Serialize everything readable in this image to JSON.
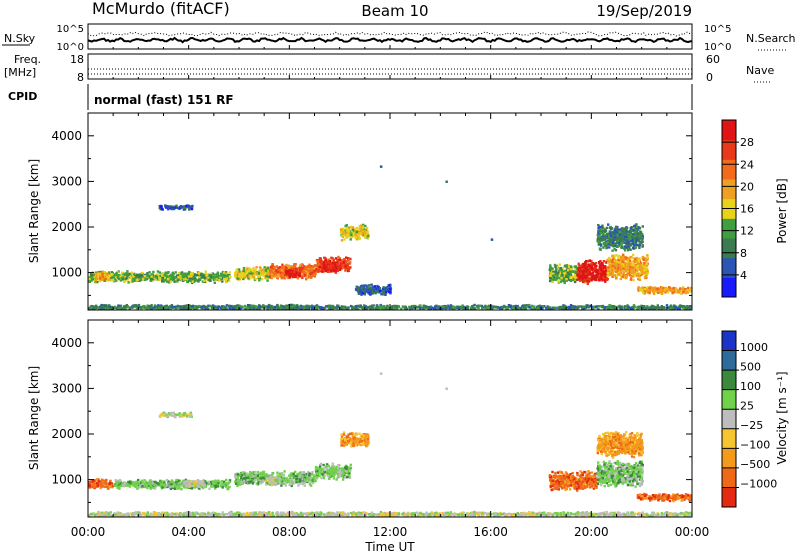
{
  "header": {
    "station": "McMurdo (fitACF)",
    "beam": "Beam 10",
    "date": "19/Sep/2019"
  },
  "noise_panel": {
    "left_label": "N.Sky",
    "right_label": "N.Search",
    "left_ticks": [
      "10^5",
      "10^0"
    ],
    "right_ticks": [
      "10^5",
      "10^0"
    ]
  },
  "freq_panel": {
    "left_label_1": "Freq.",
    "left_label_2": "[MHz]",
    "left_ticks": [
      "18",
      "8"
    ],
    "right_label": "Nave",
    "right_ticks": [
      "60",
      "0"
    ]
  },
  "cpid": {
    "label": "CPID",
    "mode": "normal (fast) 151 RF"
  },
  "colors": {
    "power_scale": [
      "#1a1aff",
      "#2a55b4",
      "#3c7a50",
      "#3f9e3f",
      "#e8d21a",
      "#f0a020",
      "#f26a1c",
      "#e83a1a",
      "#e01414"
    ],
    "velocity_scale": [
      "#1a34c8",
      "#2f6b9a",
      "#3b8a3b",
      "#6fd24a",
      "#bdbdbd",
      "#f7c531",
      "#f39a1c",
      "#ef6a17",
      "#e52a12"
    ]
  },
  "chart_data": [
    {
      "type": "heatmap",
      "name": "power",
      "xlabel": "",
      "ylabel": "Slant Range [km]",
      "x_ticks": [
        "00:00",
        "04:00",
        "08:00",
        "12:00",
        "16:00",
        "20:00",
        "00:00"
      ],
      "x_range_hours": [
        0,
        24
      ],
      "y_ticks": [
        1000,
        2000,
        3000,
        4000
      ],
      "ylim": [
        180,
        4500
      ],
      "colorbar": {
        "label": "Power [dB]",
        "ticks": [
          4,
          8,
          12,
          16,
          20,
          24,
          28
        ],
        "range": [
          0,
          32
        ]
      },
      "scatter_regions": [
        {
          "t_start": 0.0,
          "t_end": 5.6,
          "r_center": 930,
          "r_spread": 130,
          "level": 3
        },
        {
          "t_start": 0.2,
          "t_end": 0.8,
          "r_center": 950,
          "r_spread": 100,
          "level": 5
        },
        {
          "t_start": 5.8,
          "t_end": 7.2,
          "r_center": 1000,
          "r_spread": 160,
          "level": 4
        },
        {
          "t_start": 7.2,
          "t_end": 9.0,
          "r_center": 1050,
          "r_spread": 180,
          "level": 6
        },
        {
          "t_start": 7.8,
          "t_end": 8.4,
          "r_center": 1020,
          "r_spread": 120,
          "level": 8
        },
        {
          "t_start": 9.0,
          "t_end": 10.4,
          "r_center": 1200,
          "r_spread": 180,
          "level": 7
        },
        {
          "t_start": 9.3,
          "t_end": 9.9,
          "r_center": 1150,
          "r_spread": 120,
          "level": 8
        },
        {
          "t_start": 10.0,
          "t_end": 11.1,
          "r_center": 1900,
          "r_spread": 180,
          "level": 4
        },
        {
          "t_start": 2.8,
          "t_end": 4.1,
          "r_center": 2450,
          "r_spread": 60,
          "level": 1
        },
        {
          "t_start": 10.6,
          "t_end": 12.0,
          "r_center": 650,
          "r_spread": 120,
          "level": 1
        },
        {
          "t_start": 18.3,
          "t_end": 19.8,
          "r_center": 1000,
          "r_spread": 220,
          "level": 3
        },
        {
          "t_start": 19.4,
          "t_end": 20.6,
          "r_center": 1050,
          "r_spread": 280,
          "level": 8
        },
        {
          "t_start": 20.6,
          "t_end": 22.2,
          "r_center": 1150,
          "r_spread": 300,
          "level": 5
        },
        {
          "t_start": 20.2,
          "t_end": 22.0,
          "r_center": 1800,
          "r_spread": 300,
          "level": 2
        },
        {
          "t_start": 21.8,
          "t_end": 24.0,
          "r_center": 640,
          "r_spread": 90,
          "level": 5
        },
        {
          "t_start": 0.0,
          "t_end": 24.0,
          "r_center": 260,
          "r_spread": 60,
          "level": 2
        }
      ],
      "isolated_points": [
        {
          "t": 11.6,
          "r": 3350,
          "level": 1
        },
        {
          "t": 14.2,
          "r": 3020,
          "level": 2
        },
        {
          "t": 16.0,
          "r": 1750,
          "level": 1
        }
      ]
    },
    {
      "type": "heatmap",
      "name": "velocity",
      "xlabel": "Time UT",
      "ylabel": "Slant Range [km]",
      "x_ticks": [
        "00:00",
        "04:00",
        "08:00",
        "12:00",
        "16:00",
        "20:00",
        "00:00"
      ],
      "x_range_hours": [
        0,
        24
      ],
      "y_ticks": [
        1000,
        2000,
        3000,
        4000
      ],
      "ylim": [
        180,
        4500
      ],
      "colorbar": {
        "label": "Velocity [m s⁻¹]",
        "ticks": [
          "1000",
          "500",
          "100",
          "25",
          "−25",
          "−100",
          "−500",
          "−1000"
        ]
      },
      "scatter_regions": [
        {
          "t_start": 0.0,
          "t_end": 1.0,
          "r_center": 930,
          "r_spread": 120,
          "level": 7
        },
        {
          "t_start": 1.0,
          "t_end": 5.6,
          "r_center": 920,
          "r_spread": 110,
          "level": 3
        },
        {
          "t_start": 3.8,
          "t_end": 4.6,
          "r_center": 930,
          "r_spread": 90,
          "level": 4
        },
        {
          "t_start": 5.8,
          "t_end": 9.0,
          "r_center": 1050,
          "r_spread": 170,
          "level": 3
        },
        {
          "t_start": 7.0,
          "t_end": 7.6,
          "r_center": 1020,
          "r_spread": 120,
          "level": 4
        },
        {
          "t_start": 9.0,
          "t_end": 10.4,
          "r_center": 1200,
          "r_spread": 180,
          "level": 3
        },
        {
          "t_start": 10.0,
          "t_end": 11.1,
          "r_center": 1900,
          "r_spread": 180,
          "level": 6
        },
        {
          "t_start": 2.8,
          "t_end": 4.1,
          "r_center": 2450,
          "r_spread": 60,
          "level": 4
        },
        {
          "t_start": 18.3,
          "t_end": 20.2,
          "r_center": 1000,
          "r_spread": 220,
          "level": 7
        },
        {
          "t_start": 20.2,
          "t_end": 22.0,
          "r_center": 1150,
          "r_spread": 300,
          "level": 3
        },
        {
          "t_start": 20.2,
          "t_end": 22.0,
          "r_center": 1800,
          "r_spread": 300,
          "level": 6
        },
        {
          "t_start": 21.8,
          "t_end": 24.0,
          "r_center": 640,
          "r_spread": 90,
          "level": 7
        },
        {
          "t_start": 0.0,
          "t_end": 24.0,
          "r_center": 260,
          "r_spread": 60,
          "level": 4
        }
      ],
      "isolated_points": [
        {
          "t": 11.6,
          "r": 3350,
          "level": 4
        },
        {
          "t": 14.2,
          "r": 3020,
          "level": 4
        }
      ]
    }
  ]
}
